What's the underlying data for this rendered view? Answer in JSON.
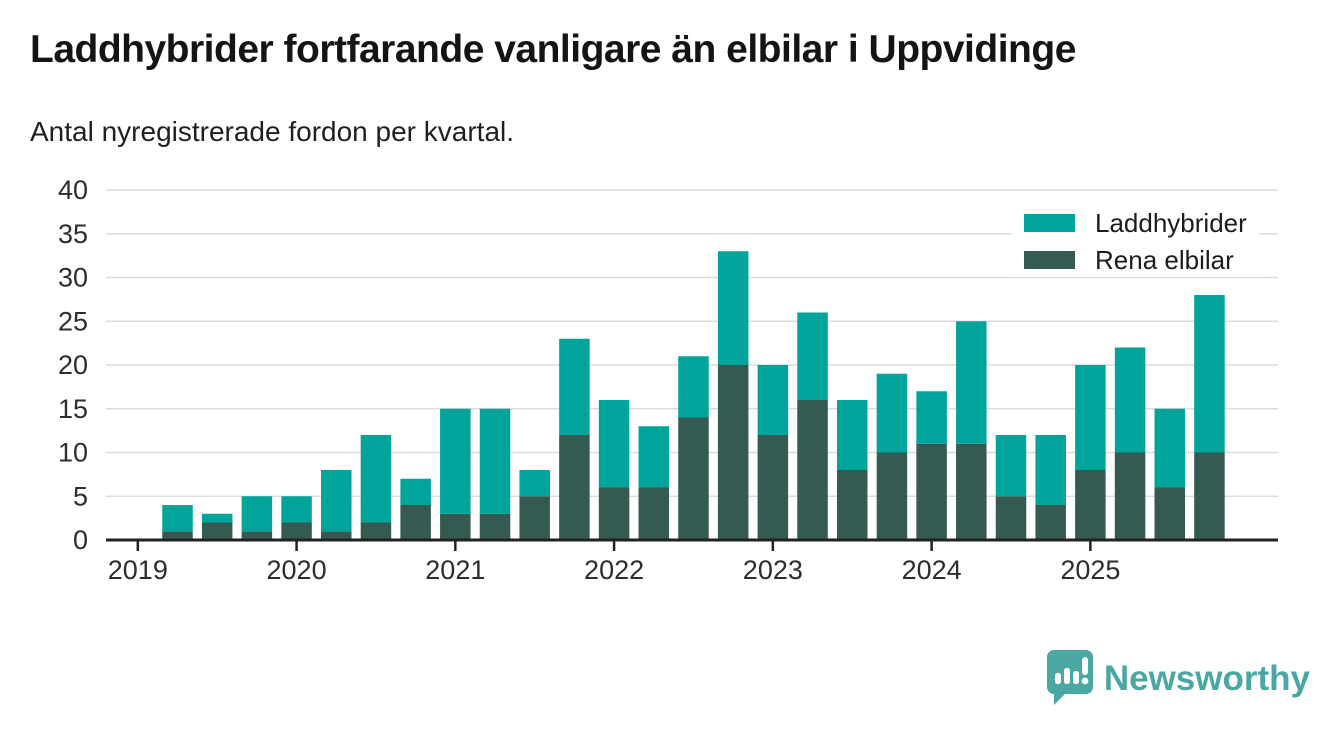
{
  "header": {
    "title": "Laddhybrider fortfarande vanligare än elbilar i Uppvidinge",
    "subtitle": "Antal nyregistrerade fordon per kvartal."
  },
  "chart_data": {
    "type": "bar",
    "stacked": true,
    "title": "Laddhybrider fortfarande vanligare än elbilar i Uppvidinge",
    "subtitle": "Antal nyregistrerade fordon per kvartal.",
    "xlabel": "",
    "ylabel": "",
    "ylim": [
      0,
      40
    ],
    "ytick_step": 5,
    "grid": true,
    "legend_position": "top-right",
    "categories": [
      "2019 K2",
      "2019 K3",
      "2019 K4",
      "2020 K1",
      "2020 K2",
      "2020 K3",
      "2020 K4",
      "2021 K1",
      "2021 K2",
      "2021 K3",
      "2021 K4",
      "2022 K1",
      "2022 K2",
      "2022 K3",
      "2022 K4",
      "2023 K1",
      "2023 K2",
      "2023 K3",
      "2023 K4",
      "2024 K1",
      "2024 K2",
      "2024 K3",
      "2024 K4",
      "2025 K1",
      "2025 K2",
      "2025 K3",
      "2025 K4"
    ],
    "x_tick_labels": [
      "2019",
      "2020",
      "2021",
      "2022",
      "2023",
      "2024",
      "2025"
    ],
    "series": [
      {
        "name": "Laddhybrider",
        "color": "#00a49b",
        "values": [
          3,
          1,
          4,
          3,
          7,
          10,
          3,
          12,
          12,
          3,
          11,
          10,
          7,
          7,
          13,
          8,
          10,
          8,
          9,
          6,
          14,
          7,
          8,
          12,
          12,
          9,
          18
        ]
      },
      {
        "name": "Rena elbilar",
        "color": "#355a52",
        "values": [
          1,
          2,
          1,
          2,
          1,
          2,
          4,
          3,
          3,
          5,
          12,
          6,
          6,
          14,
          20,
          12,
          16,
          8,
          10,
          11,
          11,
          5,
          4,
          8,
          10,
          6,
          10
        ]
      }
    ],
    "stack_totals": [
      4,
      3,
      5,
      5,
      8,
      12,
      7,
      15,
      15,
      8,
      23,
      16,
      13,
      21,
      33,
      20,
      26,
      16,
      19,
      17,
      25,
      12,
      12,
      20,
      22,
      15,
      28
    ]
  },
  "colors": {
    "laddhybrider": "#00a49b",
    "rena_elbilar": "#355a52",
    "gridline": "#dcdcdc",
    "axis": "#222222",
    "tick_label": "#2d2d2d",
    "brand_teal": "#4ba7a1"
  },
  "footer": {
    "brand": "Newsworthy"
  }
}
